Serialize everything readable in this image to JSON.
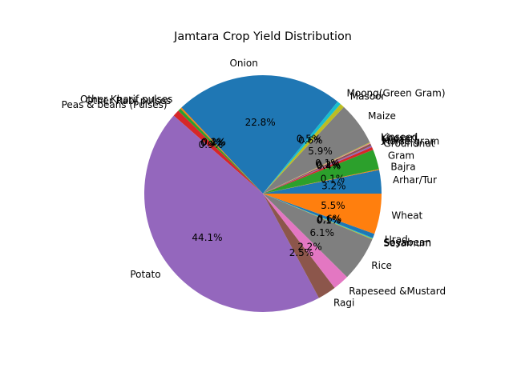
{
  "chart_data": {
    "type": "pie",
    "title": "Jamtara Crop Yield Distribution",
    "start_angle_deg": 0,
    "direction": "counterclockwise",
    "slices": [
      {
        "label": "Arhar/Tur",
        "percent": 3.2,
        "pct_label": "3.2%",
        "color": "#1f77b4"
      },
      {
        "label": "Bajra",
        "percent": 0.1,
        "pct_label": "0.1%",
        "color": "#ff7f0e"
      },
      {
        "label": "Gram",
        "percent": 2.7,
        "pct_label": "",
        "color": "#2ca02c"
      },
      {
        "label": "Groundnut",
        "percent": 0.4,
        "pct_label": "0.4%",
        "color": "#d62728"
      },
      {
        "label": "Horse-gram",
        "percent": 0.2,
        "pct_label": "0.2%",
        "color": "#9467bd"
      },
      {
        "label": "Jowar",
        "percent": 0.3,
        "pct_label": "",
        "color": "#8c564b"
      },
      {
        "label": "Khesari",
        "percent": 0.1,
        "pct_label": "0.1%",
        "color": "#e377c2"
      },
      {
        "label": "Linseed",
        "percent": 0.1,
        "pct_label": "",
        "color": "#bcbd22"
      },
      {
        "label": "Maize",
        "percent": 5.9,
        "pct_label": "5.9%",
        "color": "#7f7f7f"
      },
      {
        "label": "Masoor",
        "percent": 0.6,
        "pct_label": "0.6%",
        "color": "#bcbd22"
      },
      {
        "label": "Moong(Green Gram)",
        "percent": 0.5,
        "pct_label": "0.5%",
        "color": "#17becf"
      },
      {
        "label": "Onion",
        "percent": 22.8,
        "pct_label": "22.8%",
        "color": "#1f77b4"
      },
      {
        "label": "Other Kharif pulses",
        "percent": 0.2,
        "pct_label": "0.2%",
        "color": "#ff7f0e"
      },
      {
        "label": "Other Rabi pulses",
        "percent": 0.4,
        "pct_label": "0.4%",
        "color": "#2ca02c"
      },
      {
        "label": "Peas & beans (Pulses)",
        "percent": 0.9,
        "pct_label": "0.9%",
        "color": "#d62728"
      },
      {
        "label": "Potato",
        "percent": 44.1,
        "pct_label": "44.1%",
        "color": "#9467bd"
      },
      {
        "label": "Ragi",
        "percent": 2.5,
        "pct_label": "2.5%",
        "color": "#8c564b"
      },
      {
        "label": "Rapeseed &Mustard",
        "percent": 2.2,
        "pct_label": "2.2%",
        "color": "#e377c2"
      },
      {
        "label": "Rice",
        "percent": 6.1,
        "pct_label": "6.1%",
        "color": "#7f7f7f"
      },
      {
        "label": "Sesamum",
        "percent": 0.1,
        "pct_label": "0.1%",
        "color": "#bcbd22"
      },
      {
        "label": "Soyabean",
        "percent": 0.1,
        "pct_label": "0.1%",
        "color": "#17becf"
      },
      {
        "label": "Urad",
        "percent": 0.6,
        "pct_label": "0.6%",
        "color": "#1f77b4"
      },
      {
        "label": "Wheat",
        "percent": 5.5,
        "pct_label": "5.5%",
        "color": "#ff7f0e"
      }
    ]
  }
}
